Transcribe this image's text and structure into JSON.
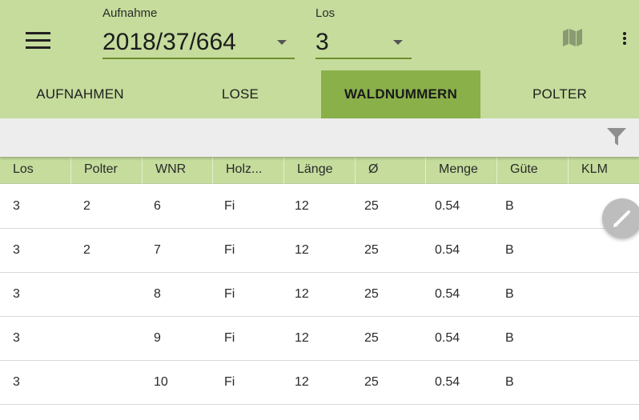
{
  "header": {
    "aufnahme_label": "Aufnahme",
    "aufnahme_value": "2018/37/664",
    "los_label": "Los",
    "los_value": "3",
    "icons": [
      "menu-icon",
      "map-icon",
      "more-vert-icon"
    ]
  },
  "tabs": [
    {
      "label": "AUFNAHMEN",
      "active": false
    },
    {
      "label": "LOSE",
      "active": false
    },
    {
      "label": "WALDNUMMERN",
      "active": true
    },
    {
      "label": "POLTER",
      "active": false
    }
  ],
  "filter": {
    "icon": "filter-icon"
  },
  "table": {
    "columns": [
      "Los",
      "Polter",
      "WNR",
      "Holz...",
      "Länge",
      "Ø",
      "Menge",
      "Güte",
      "KLM"
    ],
    "rows": [
      [
        "3",
        "2",
        "6",
        "Fi",
        "12",
        "25",
        "0.54",
        "B",
        ""
      ],
      [
        "3",
        "2",
        "7",
        "Fi",
        "12",
        "25",
        "0.54",
        "B",
        ""
      ],
      [
        "3",
        "",
        "8",
        "Fi",
        "12",
        "25",
        "0.54",
        "B",
        ""
      ],
      [
        "3",
        "",
        "9",
        "Fi",
        "12",
        "25",
        "0.54",
        "B",
        ""
      ],
      [
        "3",
        "",
        "10",
        "Fi",
        "12",
        "25",
        "0.54",
        "B",
        ""
      ]
    ]
  },
  "fab": {
    "icon": "edit-icon"
  },
  "colors": {
    "toolbar": "#c5dc9c",
    "active_tab": "#8ab04a",
    "underline": "#6e8f2c",
    "filter_bar": "#ededed"
  }
}
